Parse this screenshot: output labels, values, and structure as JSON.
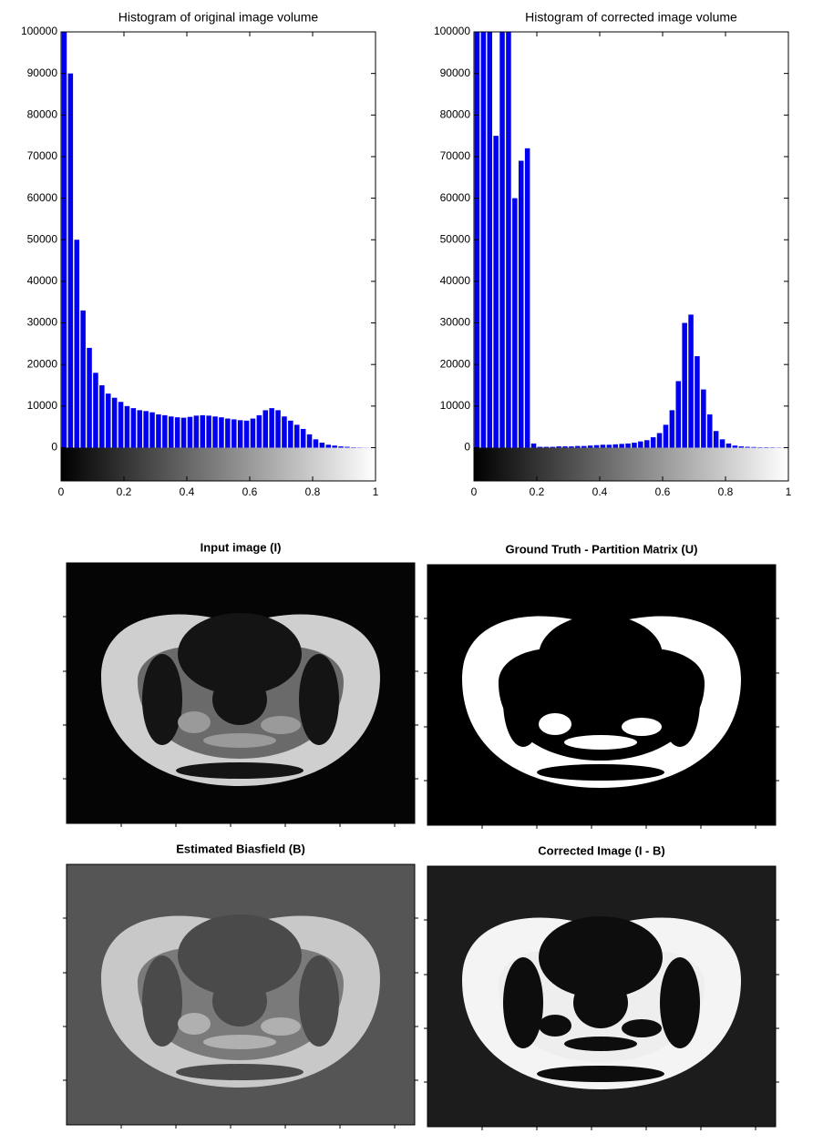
{
  "chart_data": [
    {
      "type": "histogram",
      "title": "Histogram of original image volume",
      "color": "#0000ee",
      "bins": [
        0,
        0.02,
        0.04,
        0.06,
        0.08,
        0.1,
        0.12,
        0.14,
        0.16,
        0.18,
        0.2,
        0.22,
        0.24,
        0.26,
        0.28,
        0.3,
        0.32,
        0.34,
        0.36,
        0.38,
        0.4,
        0.42,
        0.44,
        0.46,
        0.48,
        0.5,
        0.52,
        0.54,
        0.56,
        0.58,
        0.6,
        0.62,
        0.64,
        0.66,
        0.68,
        0.7,
        0.72,
        0.74,
        0.76,
        0.78,
        0.8,
        0.82,
        0.84,
        0.86,
        0.88,
        0.9,
        0.92,
        0.94,
        0.96,
        0.98,
        1
      ],
      "values": [
        100000,
        90000,
        50000,
        33000,
        24000,
        18000,
        15000,
        13000,
        12000,
        11000,
        10000,
        9500,
        9000,
        8800,
        8500,
        8000,
        7800,
        7500,
        7300,
        7200,
        7400,
        7700,
        7800,
        7700,
        7500,
        7300,
        7000,
        6800,
        6600,
        6500,
        7000,
        7800,
        9000,
        9500,
        9000,
        7500,
        6500,
        5500,
        4500,
        3200,
        2000,
        1200,
        700,
        500,
        300,
        200,
        100,
        60,
        30,
        10
      ],
      "xlim": [
        0,
        1
      ],
      "xticks": [
        0,
        0.2,
        0.4,
        0.6,
        0.8,
        1
      ],
      "ylim": [
        -8000,
        100000
      ],
      "yticks": [
        0,
        10000,
        20000,
        30000,
        40000,
        50000,
        60000,
        70000,
        80000,
        90000,
        100000
      ]
    },
    {
      "type": "histogram",
      "title": "Histogram of corrected image volume",
      "color": "#0000ee",
      "bins": [
        0,
        0.02,
        0.04,
        0.06,
        0.08,
        0.1,
        0.12,
        0.14,
        0.16,
        0.18,
        0.2,
        0.22,
        0.24,
        0.26,
        0.28,
        0.3,
        0.32,
        0.34,
        0.36,
        0.38,
        0.4,
        0.42,
        0.44,
        0.46,
        0.48,
        0.5,
        0.52,
        0.54,
        0.56,
        0.58,
        0.6,
        0.62,
        0.64,
        0.66,
        0.68,
        0.7,
        0.72,
        0.74,
        0.76,
        0.78,
        0.8,
        0.82,
        0.84,
        0.86,
        0.88,
        0.9,
        0.92,
        0.94,
        0.96,
        0.98,
        1
      ],
      "values": [
        100000,
        100000,
        100000,
        75000,
        100000,
        100000,
        60000,
        69000,
        72000,
        1000,
        200,
        200,
        200,
        300,
        300,
        300,
        400,
        400,
        500,
        600,
        700,
        700,
        800,
        900,
        1000,
        1200,
        1500,
        1800,
        2500,
        3500,
        5500,
        9000,
        16000,
        30000,
        32000,
        22000,
        14000,
        8000,
        4000,
        2000,
        1000,
        500,
        300,
        200,
        150,
        100,
        100,
        80,
        60,
        50
      ],
      "xlim": [
        0,
        1
      ],
      "xticks": [
        0,
        0.2,
        0.4,
        0.6,
        0.8,
        1
      ],
      "ylim": [
        -8000,
        100000
      ],
      "yticks": [
        0,
        10000,
        20000,
        30000,
        40000,
        50000,
        60000,
        70000,
        80000,
        90000,
        100000
      ]
    }
  ],
  "panels": [
    {
      "title": "Input image (I)"
    },
    {
      "title": "Ground Truth - Partition Matrix (U)"
    },
    {
      "title": "Estimated Biasfield (B)"
    },
    {
      "title": "Corrected Image (I - B)"
    }
  ]
}
